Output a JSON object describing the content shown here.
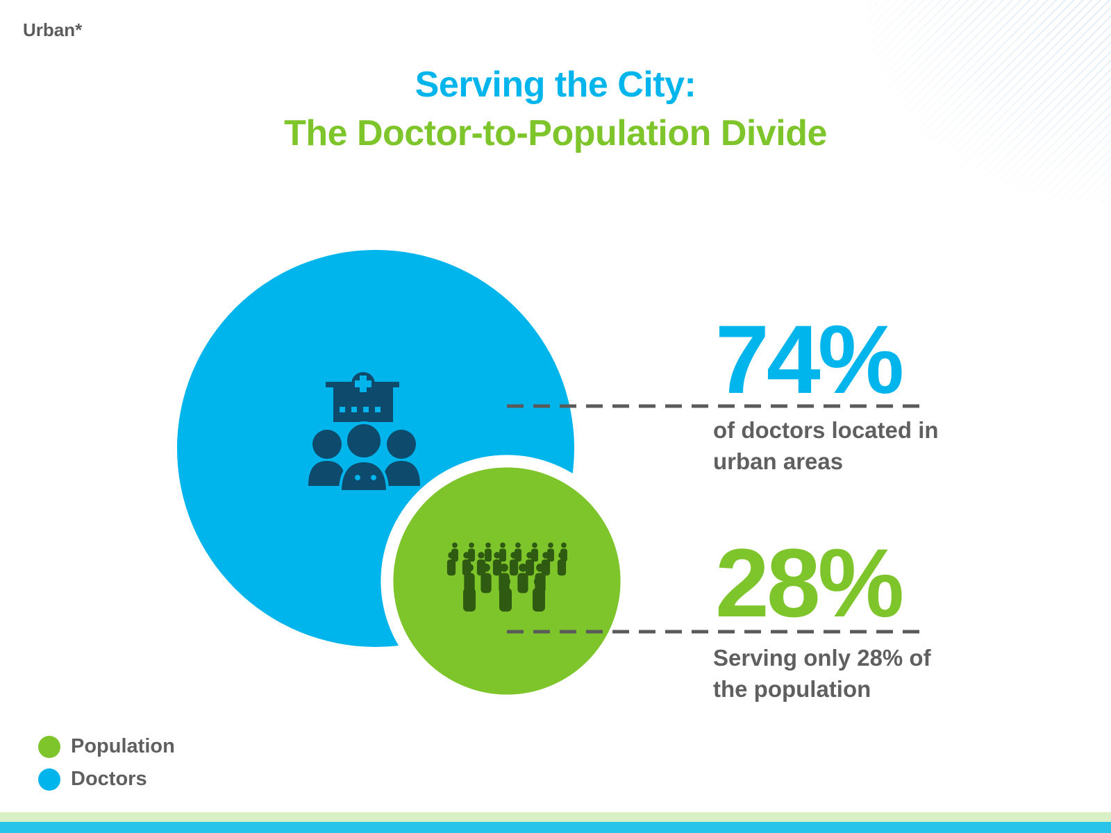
{
  "corner_tag": "Urban*",
  "title": {
    "line1": "Serving the City:",
    "line2": "The Doctor-to-Population Divide"
  },
  "colors": {
    "doctors": "#00b4ec",
    "population": "#7dc52b",
    "doctors_icon": "#0d4a6b",
    "population_icon": "#2f5a12",
    "text_gray": "#5f5f5f",
    "dash_gray": "#5a5a5a"
  },
  "icons": {
    "doctors": "hospital-doctors-icon",
    "population": "crowd-icon"
  },
  "chart_data": {
    "type": "proportional-area",
    "series": [
      {
        "name": "Doctors",
        "value": 74,
        "unit": "%",
        "caption": "of doctors located in urban areas"
      },
      {
        "name": "Population",
        "value": 28,
        "unit": "%",
        "caption": "Serving only 28% of the population"
      }
    ],
    "legend": [
      {
        "label": "Population",
        "color": "#7dc52b"
      },
      {
        "label": "Doctors",
        "color": "#00b4ec"
      }
    ],
    "legend_position": "bottom-left",
    "stat_labels": {
      "doctors": "74%",
      "population": "28%"
    }
  }
}
